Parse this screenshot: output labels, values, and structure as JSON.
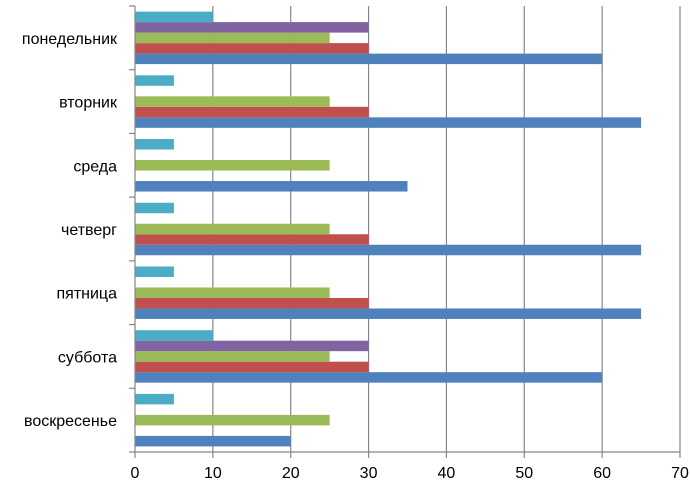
{
  "chart_data": {
    "type": "bar",
    "orientation": "horizontal",
    "categories": [
      "понедельник",
      "вторник",
      "среда",
      "четверг",
      "пятница",
      "суббота",
      "воскресенье"
    ],
    "series": [
      {
        "color": "#4F81BD",
        "values": [
          60,
          65,
          35,
          65,
          65,
          60,
          20
        ]
      },
      {
        "color": "#C0504D",
        "values": [
          30,
          30,
          0,
          30,
          30,
          30,
          0
        ]
      },
      {
        "color": "#9BBB59",
        "values": [
          25,
          25,
          25,
          25,
          25,
          25,
          25
        ]
      },
      {
        "color": "#8064A2",
        "values": [
          30,
          0,
          0,
          0,
          0,
          30,
          0
        ]
      },
      {
        "color": "#4BACC6",
        "values": [
          10,
          5,
          5,
          5,
          5,
          10,
          5
        ]
      }
    ],
    "xticks": [
      "0",
      "10",
      "20",
      "30",
      "40",
      "50",
      "60",
      "70"
    ],
    "xlim": [
      0,
      70
    ],
    "grid": "vertical",
    "legend": "none",
    "title": "",
    "xlabel": "",
    "ylabel": ""
  }
}
